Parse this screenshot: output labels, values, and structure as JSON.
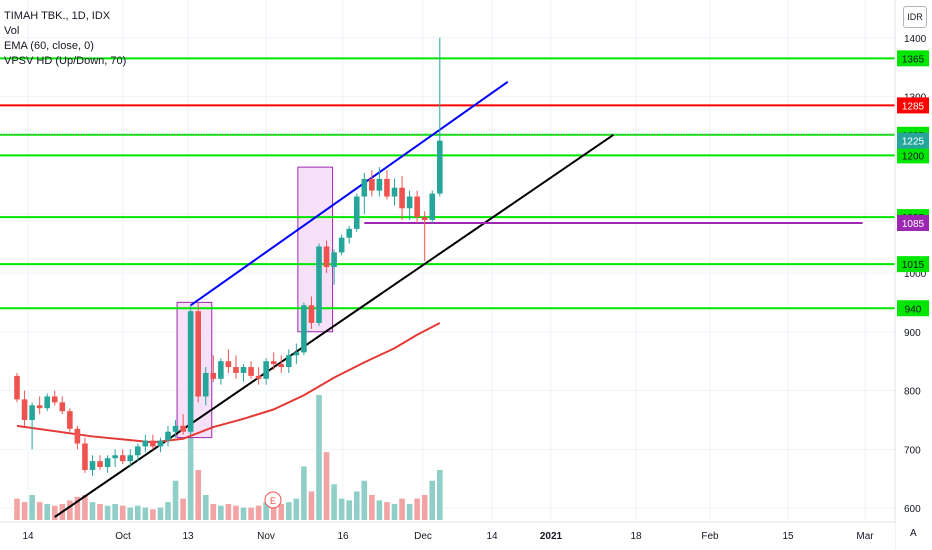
{
  "legend": {
    "title": "TIMAH TBK., 1D, IDX",
    "vol": "Vol",
    "ema": "EMA (60, close, 0)",
    "vpsv": "VPSV HD (Up/Down, 70)"
  },
  "currency_label": "IDR",
  "auto_label": "A",
  "earnings_marker": "E",
  "colors": {
    "up": "#26a69a",
    "down": "#ef5350",
    "vol_up": "#8fcfc8",
    "vol_down": "#f2a3a3",
    "green_level": "#00e600",
    "red_level": "#ff0000",
    "purple_level": "#9c27b0",
    "ema": "#e53935",
    "blue_trend": "#0000ff",
    "black_trend": "#000000",
    "box_fill": "#f3d7f6",
    "box_stroke": "#9c27b0"
  },
  "chart_data": {
    "type": "candlestick",
    "y_axis": {
      "ticks": [
        "600",
        "700",
        "800",
        "900",
        "1000",
        "1100",
        "1200",
        "1300",
        "1400"
      ],
      "ylim": [
        585,
        1420
      ]
    },
    "x_axis": {
      "ticks": [
        "14",
        "Oct",
        "13",
        "Nov",
        "16",
        "Dec",
        "14",
        "2021",
        "18",
        "Feb",
        "15",
        "Mar"
      ]
    },
    "levels": [
      {
        "value": 1365,
        "label": "1365",
        "kind": "green"
      },
      {
        "value": 1285,
        "label": "1285",
        "kind": "red"
      },
      {
        "value": 1235,
        "label": "1235",
        "kind": "green"
      },
      {
        "value": 1200,
        "label": "1200",
        "kind": "green"
      },
      {
        "value": 1095,
        "label": "1095",
        "kind": "green"
      },
      {
        "value": 1015,
        "label": "1015",
        "kind": "green"
      },
      {
        "value": 940,
        "label": "940",
        "kind": "green"
      }
    ],
    "last_price": {
      "value": 1225,
      "label": "1225"
    },
    "purple_level": {
      "value": 1085,
      "label": "1085"
    },
    "candles": [
      [
        825,
        830,
        780,
        785,
        12
      ],
      [
        785,
        800,
        740,
        750,
        10
      ],
      [
        750,
        780,
        700,
        775,
        14
      ],
      [
        775,
        790,
        760,
        770,
        10
      ],
      [
        770,
        795,
        765,
        790,
        9
      ],
      [
        790,
        800,
        775,
        780,
        8
      ],
      [
        780,
        790,
        760,
        765,
        9
      ],
      [
        765,
        770,
        730,
        735,
        11
      ],
      [
        735,
        740,
        700,
        710,
        13
      ],
      [
        710,
        720,
        660,
        665,
        14
      ],
      [
        665,
        690,
        655,
        680,
        10
      ],
      [
        680,
        690,
        665,
        670,
        9
      ],
      [
        670,
        690,
        660,
        685,
        8
      ],
      [
        685,
        700,
        670,
        690,
        9
      ],
      [
        690,
        700,
        675,
        680,
        8
      ],
      [
        680,
        700,
        670,
        690,
        7
      ],
      [
        690,
        710,
        680,
        705,
        8
      ],
      [
        705,
        725,
        695,
        715,
        7
      ],
      [
        715,
        725,
        700,
        705,
        6
      ],
      [
        705,
        720,
        695,
        715,
        7
      ],
      [
        715,
        740,
        705,
        730,
        10
      ],
      [
        730,
        750,
        720,
        740,
        22
      ],
      [
        740,
        760,
        725,
        730,
        12
      ],
      [
        730,
        945,
        725,
        935,
        55
      ],
      [
        935,
        950,
        780,
        790,
        28
      ],
      [
        790,
        840,
        775,
        830,
        14
      ],
      [
        830,
        860,
        815,
        820,
        9
      ],
      [
        820,
        855,
        810,
        850,
        8
      ],
      [
        850,
        870,
        830,
        840,
        9
      ],
      [
        840,
        860,
        820,
        830,
        8
      ],
      [
        830,
        845,
        815,
        840,
        7
      ],
      [
        840,
        850,
        820,
        825,
        7
      ],
      [
        825,
        840,
        810,
        820,
        8
      ],
      [
        820,
        855,
        810,
        850,
        10
      ],
      [
        850,
        865,
        835,
        845,
        9
      ],
      [
        845,
        860,
        830,
        840,
        9
      ],
      [
        840,
        870,
        830,
        860,
        10
      ],
      [
        860,
        880,
        845,
        865,
        12
      ],
      [
        865,
        950,
        860,
        945,
        30
      ],
      [
        945,
        960,
        905,
        915,
        16
      ],
      [
        915,
        1050,
        910,
        1045,
        70
      ],
      [
        1045,
        1055,
        1000,
        1010,
        38
      ],
      [
        1010,
        1040,
        980,
        1035,
        20
      ],
      [
        1035,
        1065,
        1030,
        1060,
        12
      ],
      [
        1060,
        1080,
        1050,
        1075,
        11
      ],
      [
        1075,
        1135,
        1070,
        1130,
        16
      ],
      [
        1130,
        1170,
        1100,
        1160,
        22
      ],
      [
        1160,
        1175,
        1130,
        1140,
        14
      ],
      [
        1140,
        1180,
        1130,
        1160,
        11
      ],
      [
        1160,
        1175,
        1125,
        1130,
        10
      ],
      [
        1130,
        1160,
        1115,
        1145,
        9
      ],
      [
        1145,
        1165,
        1090,
        1110,
        12
      ],
      [
        1110,
        1140,
        1090,
        1130,
        9
      ],
      [
        1130,
        1140,
        1085,
        1095,
        12
      ],
      [
        1095,
        1105,
        1020,
        1090,
        14
      ],
      [
        1090,
        1140,
        1085,
        1135,
        22
      ],
      [
        1135,
        1400,
        1130,
        1225,
        28
      ]
    ],
    "ema": [
      [
        0,
        740
      ],
      [
        10,
        722
      ],
      [
        18,
        712
      ],
      [
        22,
        718
      ],
      [
        26,
        738
      ],
      [
        30,
        752
      ],
      [
        34,
        768
      ],
      [
        38,
        792
      ],
      [
        42,
        822
      ],
      [
        46,
        848
      ],
      [
        50,
        872
      ],
      [
        53,
        895
      ],
      [
        56,
        915
      ]
    ],
    "trendlines": [
      {
        "kind": "blue",
        "from": [
          23,
          945
        ],
        "to": [
          65,
          1325
        ]
      },
      {
        "kind": "black",
        "from": [
          5,
          585
        ],
        "to": [
          79,
          1235
        ]
      },
      {
        "kind": "purple",
        "from": [
          46,
          1085
        ],
        "to": [
          112,
          1085
        ]
      }
    ],
    "boxes": [
      {
        "from": 21.2,
        "to": 25.8,
        "low": 720,
        "high": 950
      },
      {
        "from": 37.2,
        "to": 41.8,
        "low": 900,
        "high": 1180
      }
    ],
    "vol_max": 70
  }
}
